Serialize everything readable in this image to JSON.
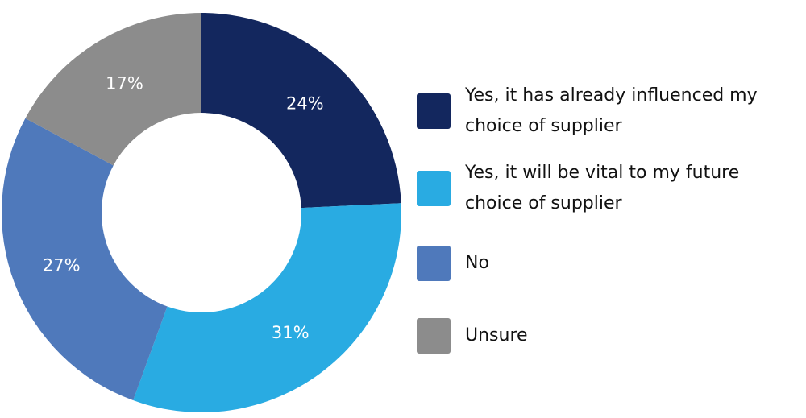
{
  "chart_data": {
    "type": "donut",
    "categories": [
      "Yes, it has already influenced my choice of supplier",
      "Yes, it will be vital to my future choice of supplier",
      "No",
      "Unsure"
    ],
    "values": [
      24,
      31,
      27,
      17
    ],
    "value_labels": [
      "24%",
      "31%",
      "27%",
      "17%"
    ],
    "colors": [
      "#13275e",
      "#29abe2",
      "#4f79bb",
      "#8c8c8c"
    ],
    "legend": "right"
  }
}
